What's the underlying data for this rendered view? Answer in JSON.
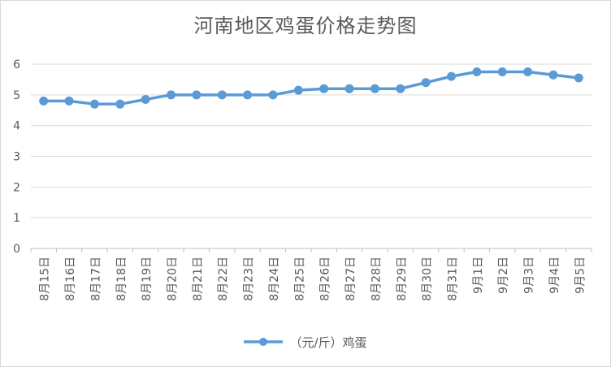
{
  "chart_data": {
    "type": "line",
    "title": "河南地区鸡蛋价格走势图",
    "xlabel": "",
    "ylabel": "",
    "ylim": [
      0,
      6
    ],
    "yticks": [
      "0",
      "1",
      "2",
      "3",
      "4",
      "5",
      "6"
    ],
    "grid": true,
    "legend_position": "bottom",
    "categories": [
      "8月15日",
      "8月16日",
      "8月17日",
      "8月18日",
      "8月19日",
      "8月20日",
      "8月21日",
      "8月22日",
      "8月23日",
      "8月24日",
      "8月25日",
      "8月26日",
      "8月27日",
      "8月28日",
      "8月29日",
      "8月30日",
      "8月31日",
      "9月1日",
      "9月2日",
      "9月3日",
      "9月4日",
      "9月5日"
    ],
    "series": [
      {
        "name": "（元/斤）鸡蛋",
        "color": "#5b9bd5",
        "values": [
          4.8,
          4.8,
          4.7,
          4.7,
          4.85,
          5.0,
          5.0,
          5.0,
          5.0,
          5.0,
          5.15,
          5.2,
          5.2,
          5.2,
          5.2,
          5.4,
          5.6,
          5.75,
          5.75,
          5.75,
          5.65,
          5.55
        ]
      }
    ]
  }
}
